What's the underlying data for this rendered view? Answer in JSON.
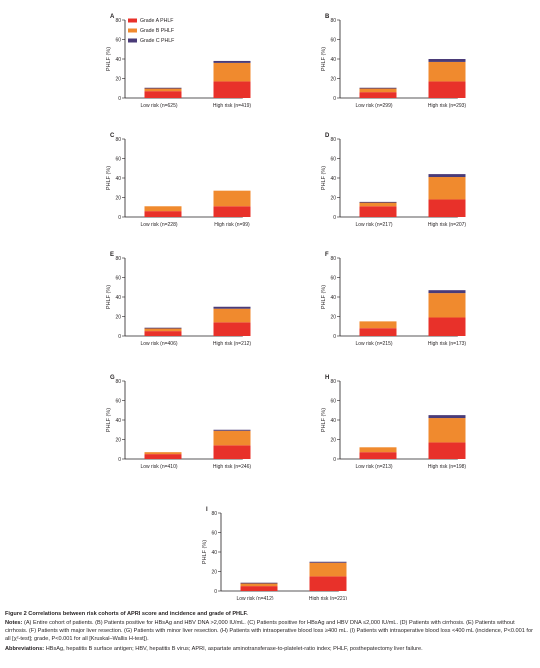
{
  "colors": {
    "grade_a": "#e8312a",
    "grade_b": "#f08a2e",
    "grade_c": "#4a3b78",
    "axis": "#231f20"
  },
  "legend": [
    "Grade A PHLF",
    "Grade B PHLF",
    "Grade C PHLF"
  ],
  "chart_data": [
    {
      "type": "bar",
      "stacked": true,
      "panel": "A",
      "ylabel": "PHLF (%)",
      "ylim": [
        0,
        80
      ],
      "yticks": [
        0,
        20,
        40,
        60,
        80
      ],
      "categories": [
        "Low risk (n=625)",
        "High risk (n=419)"
      ],
      "series": [
        {
          "name": "Grade A PHLF",
          "values": [
            7,
            17
          ]
        },
        {
          "name": "Grade B PHLF",
          "values": [
            3,
            19
          ]
        },
        {
          "name": "Grade C PHLF",
          "values": [
            0.5,
            2
          ]
        }
      ],
      "legend_placement": "top-left"
    },
    {
      "type": "bar",
      "stacked": true,
      "panel": "B",
      "ylabel": "PHLF (%)",
      "ylim": [
        0,
        80
      ],
      "yticks": [
        0,
        20,
        40,
        60,
        80
      ],
      "categories": [
        "Low risk (n=299)",
        "High risk (n=293)"
      ],
      "series": [
        {
          "name": "Grade A PHLF",
          "values": [
            6,
            17
          ]
        },
        {
          "name": "Grade B PHLF",
          "values": [
            4,
            20
          ]
        },
        {
          "name": "Grade C PHLF",
          "values": [
            0.5,
            3
          ]
        }
      ]
    },
    {
      "type": "bar",
      "stacked": true,
      "panel": "C",
      "ylabel": "PHLF (%)",
      "ylim": [
        0,
        80
      ],
      "yticks": [
        0,
        20,
        40,
        60,
        80
      ],
      "categories": [
        "Low risk (n=228)",
        "High risk (n=99)"
      ],
      "series": [
        {
          "name": "Grade A PHLF",
          "values": [
            6,
            11
          ]
        },
        {
          "name": "Grade B PHLF",
          "values": [
            5,
            16
          ]
        },
        {
          "name": "Grade C PHLF",
          "values": [
            0,
            0
          ]
        }
      ]
    },
    {
      "type": "bar",
      "stacked": true,
      "panel": "D",
      "ylabel": "PHLF (%)",
      "ylim": [
        0,
        80
      ],
      "yticks": [
        0,
        20,
        40,
        60,
        80
      ],
      "categories": [
        "Low risk (n=217)",
        "High risk (n=207)"
      ],
      "series": [
        {
          "name": "Grade A PHLF",
          "values": [
            11,
            18
          ]
        },
        {
          "name": "Grade B PHLF",
          "values": [
            4,
            23
          ]
        },
        {
          "name": "Grade C PHLF",
          "values": [
            0.5,
            3
          ]
        }
      ]
    },
    {
      "type": "bar",
      "stacked": true,
      "panel": "E",
      "ylabel": "PHLF (%)",
      "ylim": [
        0,
        80
      ],
      "yticks": [
        0,
        20,
        40,
        60,
        80
      ],
      "categories": [
        "Low risk (n=406)",
        "High risk (n=212)"
      ],
      "series": [
        {
          "name": "Grade A PHLF",
          "values": [
            5,
            14
          ]
        },
        {
          "name": "Grade B PHLF",
          "values": [
            3,
            14
          ]
        },
        {
          "name": "Grade C PHLF",
          "values": [
            0.5,
            2
          ]
        }
      ]
    },
    {
      "type": "bar",
      "stacked": true,
      "panel": "F",
      "ylabel": "PHLF (%)",
      "ylim": [
        0,
        80
      ],
      "yticks": [
        0,
        20,
        40,
        60,
        80
      ],
      "categories": [
        "Low risk (n=215)",
        "High risk (n=173)"
      ],
      "series": [
        {
          "name": "Grade A PHLF",
          "values": [
            8,
            19
          ]
        },
        {
          "name": "Grade B PHLF",
          "values": [
            7,
            25
          ]
        },
        {
          "name": "Grade C PHLF",
          "values": [
            0,
            3
          ]
        }
      ]
    },
    {
      "type": "bar",
      "stacked": true,
      "panel": "G",
      "ylabel": "PHLF (%)",
      "ylim": [
        0,
        80
      ],
      "yticks": [
        0,
        20,
        40,
        60,
        80
      ],
      "categories": [
        "Low risk (n=410)",
        "High risk (n=246)"
      ],
      "series": [
        {
          "name": "Grade A PHLF",
          "values": [
            5,
            14
          ]
        },
        {
          "name": "Grade B PHLF",
          "values": [
            2,
            15
          ]
        },
        {
          "name": "Grade C PHLF",
          "values": [
            0,
            1
          ]
        }
      ]
    },
    {
      "type": "bar",
      "stacked": true,
      "panel": "H",
      "ylabel": "PHLF (%)",
      "ylim": [
        0,
        80
      ],
      "yticks": [
        0,
        20,
        40,
        60,
        80
      ],
      "categories": [
        "Low risk (n=213)",
        "High risk (n=198)"
      ],
      "series": [
        {
          "name": "Grade A PHLF",
          "values": [
            7,
            17
          ]
        },
        {
          "name": "Grade B PHLF",
          "values": [
            5,
            25
          ]
        },
        {
          "name": "Grade C PHLF",
          "values": [
            0,
            3
          ]
        }
      ]
    },
    {
      "type": "bar",
      "stacked": true,
      "panel": "I",
      "ylabel": "PHLF (%)",
      "ylim": [
        0,
        80
      ],
      "yticks": [
        0,
        20,
        40,
        60,
        80
      ],
      "categories": [
        "Low risk (n=412)",
        "High risk (n=221)"
      ],
      "series": [
        {
          "name": "Grade A PHLF",
          "values": [
            5,
            15
          ]
        },
        {
          "name": "Grade B PHLF",
          "values": [
            3,
            14
          ]
        },
        {
          "name": "Grade C PHLF",
          "values": [
            0.5,
            1
          ]
        }
      ]
    }
  ],
  "caption": {
    "title": "Figure 2 Correlations between risk cohorts of APRI score and incidence and grade of PHLF.",
    "notes_label": "Notes:",
    "notes_text": " (A) Entire cohort of patients. (B) Patients positive for HBsAg and HBV DNA >2,000 IU/mL. (C) Patients positive for HBsAg and HBV DNA ≤2,000 IU/mL. (D) Patients with cirrhosis. (E) Patients without cirrhosis. (F) Patients with major liver resection. (G) Patients with minor liver resection. (H) Patients with intraoperative blood loss ≥400 mL. (I) Patients with intraoperative blood loss <400 mL (incidence, P<0.001 for all [χ²-test]; grade, P<0.001 for all [Kruskal–Wallis H-test]).",
    "abbr_label": "Abbreviations:",
    "abbr_text": " HBsAg, hepatitis B surface antigen; HBV, hepatitis B virus; APRI, aspartate aminotransferase-to-platelet-ratio index; PHLF, posthepatectomy liver failure."
  }
}
